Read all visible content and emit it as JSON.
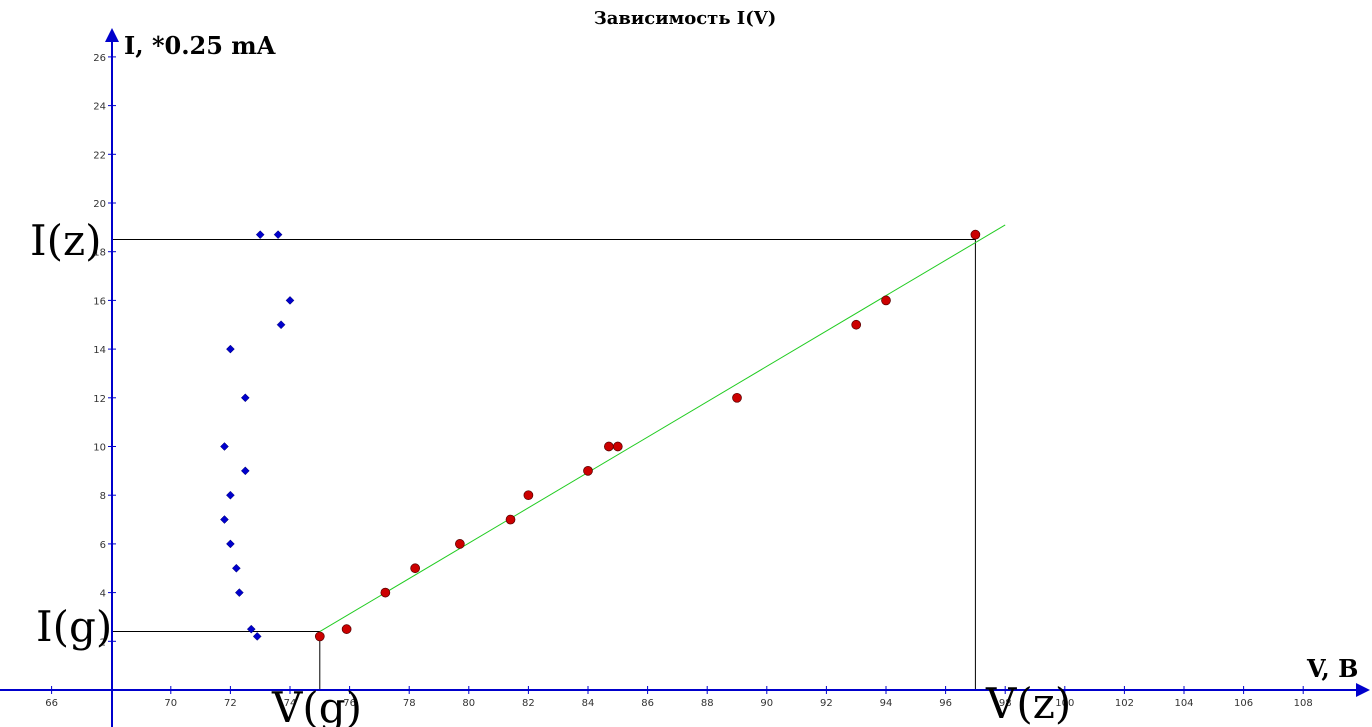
{
  "chart_data": {
    "type": "scatter",
    "title": "Зависимость I(V)",
    "xlabel": "V, B",
    "ylabel": "I, *0.25 mA",
    "xlim": [
      62.5,
      110
    ],
    "ylim": [
      0,
      27
    ],
    "x_ticks": [
      66,
      70,
      72,
      74,
      76,
      78,
      80,
      82,
      84,
      86,
      88,
      90,
      92,
      94,
      96,
      98,
      100,
      102,
      104,
      106,
      108
    ],
    "y_ticks": [
      2,
      4,
      6,
      8,
      10,
      12,
      14,
      16,
      18,
      20,
      22,
      24,
      26
    ],
    "grid": false,
    "colors": {
      "axis": "#0000cc",
      "series_a": "#0000cc",
      "series_b": "#cc0000",
      "fit": "#22cc22",
      "guide": "#000000"
    },
    "series": [
      {
        "marker": "diamond",
        "x": [
          72.9,
          72.7,
          72.3,
          72.2,
          72.0,
          71.8,
          72.0,
          72.5,
          71.8,
          72.5,
          72.0,
          73.7,
          74.0,
          73.6,
          73.0
        ],
        "y": [
          2.2,
          2.5,
          4,
          5,
          6,
          7,
          8,
          9,
          10,
          12,
          14,
          15,
          16,
          18.7,
          18.7
        ]
      },
      {
        "marker": "circle",
        "x": [
          75.0,
          75.9,
          77.2,
          78.2,
          79.7,
          81.4,
          82.0,
          84.0,
          84.7,
          85.0,
          89.0,
          93.0,
          94.0,
          97.0
        ],
        "y": [
          2.2,
          2.5,
          4,
          5,
          6,
          7,
          8,
          9,
          10,
          10,
          12,
          15,
          16,
          18.7
        ]
      }
    ],
    "fit_line": {
      "x": [
        75.0,
        98.0
      ],
      "y": [
        2.4,
        19.1
      ]
    },
    "markers": {
      "vg": {
        "label": "V(g)",
        "x": 75.0
      },
      "vz": {
        "label": "V(z)",
        "x": 97.0
      },
      "ig": {
        "label": "I(g)",
        "y": 2.4
      },
      "iz": {
        "label": "I(z)",
        "y": 18.5
      }
    }
  }
}
